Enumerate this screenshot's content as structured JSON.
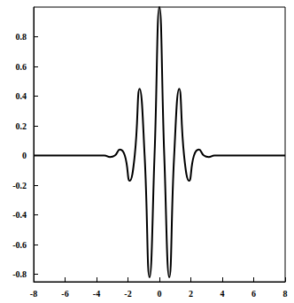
{
  "chart_data": {
    "type": "line",
    "color": "#000000",
    "grid": false,
    "x": [
      -8,
      -3.5,
      -3.14,
      -2.83,
      -2.51,
      -2.2,
      -1.89,
      -1.57,
      -1.26,
      -0.94,
      -0.63,
      -0.31,
      0,
      0.31,
      0.63,
      0.94,
      1.26,
      1.57,
      1.89,
      2.2,
      2.51,
      2.83,
      3.14,
      3.5,
      8
    ],
    "values": [
      0,
      0,
      -0.01,
      0,
      0.04,
      0,
      -0.17,
      0,
      0.45,
      0,
      -0.82,
      0,
      1,
      0,
      -0.82,
      0,
      0.45,
      0,
      -0.17,
      0,
      0.04,
      0,
      -0.01,
      0,
      0
    ],
    "xlim": [
      -8,
      8
    ],
    "xticks": [
      -8,
      -6,
      -4,
      -2,
      0,
      2,
      4,
      6,
      8
    ],
    "ylim": [
      -0.85,
      1
    ],
    "yticks": [
      -0.8,
      -0.6,
      -0.4,
      -0.2,
      0,
      0.2,
      0.4,
      0.6,
      0.8
    ]
  }
}
